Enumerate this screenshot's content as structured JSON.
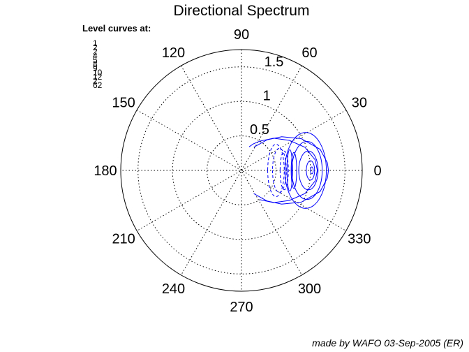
{
  "chart_data": {
    "type": "polar-contour",
    "title": "Directional Spectrum",
    "theta_ticks": [
      0,
      30,
      60,
      90,
      120,
      150,
      180,
      210,
      240,
      270,
      300,
      330
    ],
    "theta_tick_labels": [
      "0",
      "30",
      "60",
      "90",
      "120",
      "150",
      "180",
      "210",
      "240",
      "270",
      "300",
      "330"
    ],
    "r_max": 1.75,
    "r_ticks": [
      0.5,
      1,
      1.5
    ],
    "r_tick_labels": [
      "0.5",
      "1",
      "1.5"
    ],
    "grid": true,
    "level_curves_header": "Level curves at:",
    "level_values": [
      "1",
      "2",
      "2",
      "4",
      "5",
      "8",
      "9",
      "10",
      "12",
      "2",
      "62"
    ],
    "contour_color": "#0000ff",
    "contours": [
      {
        "style": "solid",
        "points": [
          [
            -62,
            0.38
          ],
          [
            -50,
            0.58
          ],
          [
            -40,
            0.76
          ],
          [
            -28,
            0.98
          ],
          [
            -15,
            1.18
          ],
          [
            -5,
            1.25
          ],
          [
            0,
            1.26
          ],
          [
            5,
            1.25
          ],
          [
            15,
            1.18
          ],
          [
            28,
            0.98
          ],
          [
            40,
            0.76
          ],
          [
            50,
            0.58
          ],
          [
            62,
            0.38
          ]
        ]
      },
      {
        "style": "solid",
        "points": [
          [
            -58,
            0.5
          ],
          [
            -45,
            0.66
          ],
          [
            -32,
            0.82
          ],
          [
            -20,
            0.98
          ],
          [
            -8,
            1.08
          ],
          [
            0,
            1.1
          ],
          [
            8,
            1.08
          ],
          [
            20,
            0.98
          ],
          [
            32,
            0.82
          ],
          [
            45,
            0.66
          ],
          [
            58,
            0.5
          ],
          [
            66,
            0.42
          ],
          [
            72,
            0.36
          ]
        ]
      },
      {
        "style": "closed",
        "center": [
          0.93,
          0.0
        ],
        "rx": 0.3,
        "ry": 0.55
      },
      {
        "style": "closed",
        "center": [
          0.95,
          0.0
        ],
        "rx": 0.22,
        "ry": 0.42
      },
      {
        "style": "closed",
        "center": [
          0.97,
          0.0
        ],
        "rx": 0.14,
        "ry": 0.28
      },
      {
        "style": "closed",
        "center": [
          1.0,
          0.0
        ],
        "rx": 0.06,
        "ry": 0.14
      },
      {
        "style": "closed",
        "center": [
          1.02,
          0.0
        ],
        "rx": 0.02,
        "ry": 0.05
      },
      {
        "style": "dashed",
        "center": [
          0.5,
          0.0
        ],
        "rx": 0.12,
        "ry": 0.38
      },
      {
        "style": "dashed",
        "center": [
          0.55,
          0.0
        ],
        "rx": 0.1,
        "ry": 0.32
      },
      {
        "style": "dashed",
        "center": [
          0.62,
          0.0
        ],
        "rx": 0.06,
        "ry": 0.28
      },
      {
        "style": "solid",
        "center": [
          0.7,
          0.0
        ],
        "rx": 0.04,
        "ry": 0.3
      },
      {
        "style": "solid",
        "center": [
          0.76,
          0.0
        ],
        "rx": 0.04,
        "ry": 0.26
      }
    ]
  },
  "footer": {
    "credit": "made by WAFO 03-Sep-2005 (ER)"
  }
}
